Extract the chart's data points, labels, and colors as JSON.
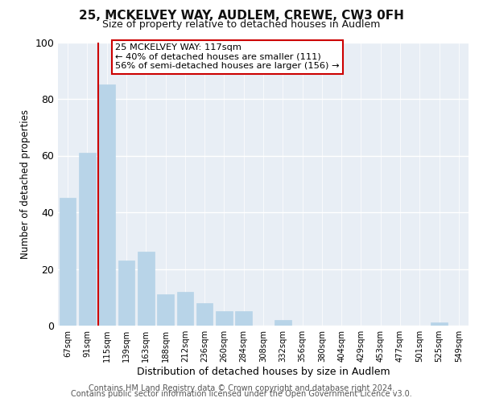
{
  "title": "25, MCKELVEY WAY, AUDLEM, CREWE, CW3 0FH",
  "subtitle": "Size of property relative to detached houses in Audlem",
  "xlabel": "Distribution of detached houses by size in Audlem",
  "ylabel": "Number of detached properties",
  "bar_labels": [
    "67sqm",
    "91sqm",
    "115sqm",
    "139sqm",
    "163sqm",
    "188sqm",
    "212sqm",
    "236sqm",
    "260sqm",
    "284sqm",
    "308sqm",
    "332sqm",
    "356sqm",
    "380sqm",
    "404sqm",
    "429sqm",
    "453sqm",
    "477sqm",
    "501sqm",
    "525sqm",
    "549sqm"
  ],
  "bar_values": [
    45,
    61,
    85,
    23,
    26,
    11,
    12,
    8,
    5,
    5,
    0,
    2,
    0,
    0,
    0,
    0,
    0,
    0,
    0,
    1,
    0
  ],
  "bar_color": "#b8d4e8",
  "bar_edge_color": "#b8d4e8",
  "highlight_line_color": "#cc0000",
  "highlight_bar_index": 2,
  "ylim": [
    0,
    100
  ],
  "yticks": [
    0,
    20,
    40,
    60,
    80,
    100
  ],
  "annotation_line1": "25 MCKELVEY WAY: 117sqm",
  "annotation_line2": "← 40% of detached houses are smaller (111)",
  "annotation_line3": "56% of semi-detached houses are larger (156) →",
  "annotation_box_color": "#ffffff",
  "annotation_box_edge_color": "#cc0000",
  "footer_line1": "Contains HM Land Registry data © Crown copyright and database right 2024.",
  "footer_line2": "Contains public sector information licensed under the Open Government Licence v3.0.",
  "background_color": "#ffffff",
  "plot_background_color": "#e8eef5",
  "grid_color": "#ffffff",
  "title_fontsize": 11,
  "subtitle_fontsize": 9,
  "footer_fontsize": 7,
  "ylabel_fontsize": 8.5,
  "xlabel_fontsize": 9
}
